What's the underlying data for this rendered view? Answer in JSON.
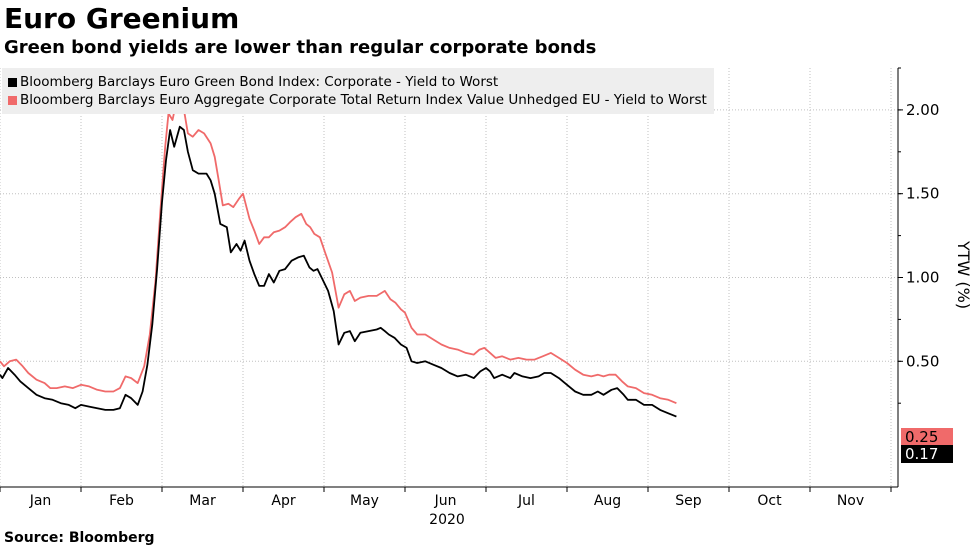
{
  "title": "Euro Greenium",
  "subtitle": "Green bond yields are lower than regular corporate bonds",
  "source": "Source: Bloomberg",
  "colors": {
    "green_series": "#000000",
    "aggregate_series": "#f06a6a",
    "grid": "#bbbbbb",
    "legend_bg": "#eeeeee"
  },
  "chart_data": {
    "type": "line",
    "title": "Euro Greenium",
    "xlabel": "2020",
    "ylabel": "YTW (%)",
    "ylim": [
      -0.25,
      2.25
    ],
    "yticks": [
      0.5,
      1.0,
      1.5,
      2.0
    ],
    "ytick_labels": [
      "0.50",
      "1.00",
      "1.50",
      "2.00"
    ],
    "grid": true,
    "legend_position": "top-left",
    "x_months": [
      "Jan",
      "Feb",
      "Mar",
      "Apr",
      "May",
      "Jun",
      "Jul",
      "Aug",
      "Sep",
      "Oct",
      "Nov"
    ],
    "x_year": "2020",
    "series": [
      {
        "name": "Bloomberg Barclays Euro Green Bond Index: Corporate - Yield to Worst",
        "color": "#000000",
        "last_value_label": "0.17",
        "points": [
          [
            0,
            0.42
          ],
          [
            0.03,
            0.4
          ],
          [
            0.1,
            0.46
          ],
          [
            0.18,
            0.42
          ],
          [
            0.25,
            0.38
          ],
          [
            0.35,
            0.34
          ],
          [
            0.45,
            0.3
          ],
          [
            0.55,
            0.28
          ],
          [
            0.65,
            0.27
          ],
          [
            0.75,
            0.25
          ],
          [
            0.85,
            0.24
          ],
          [
            0.93,
            0.22
          ],
          [
            1.0,
            0.24
          ],
          [
            1.1,
            0.23
          ],
          [
            1.2,
            0.22
          ],
          [
            1.3,
            0.21
          ],
          [
            1.4,
            0.21
          ],
          [
            1.48,
            0.22
          ],
          [
            1.55,
            0.3
          ],
          [
            1.62,
            0.28
          ],
          [
            1.7,
            0.24
          ],
          [
            1.76,
            0.32
          ],
          [
            1.82,
            0.48
          ],
          [
            1.88,
            0.72
          ],
          [
            1.94,
            1.05
          ],
          [
            2.0,
            1.45
          ],
          [
            2.05,
            1.7
          ],
          [
            2.1,
            1.88
          ],
          [
            2.15,
            1.78
          ],
          [
            2.22,
            1.9
          ],
          [
            2.27,
            1.88
          ],
          [
            2.32,
            1.75
          ],
          [
            2.38,
            1.64
          ],
          [
            2.45,
            1.62
          ],
          [
            2.55,
            1.62
          ],
          [
            2.6,
            1.58
          ],
          [
            2.65,
            1.5
          ],
          [
            2.72,
            1.32
          ],
          [
            2.8,
            1.3
          ],
          [
            2.85,
            1.15
          ],
          [
            2.92,
            1.2
          ],
          [
            2.97,
            1.16
          ],
          [
            3.02,
            1.22
          ],
          [
            3.08,
            1.1
          ],
          [
            3.14,
            1.02
          ],
          [
            3.2,
            0.95
          ],
          [
            3.26,
            0.95
          ],
          [
            3.32,
            1.02
          ],
          [
            3.38,
            0.97
          ],
          [
            3.45,
            1.04
          ],
          [
            3.52,
            1.05
          ],
          [
            3.6,
            1.1
          ],
          [
            3.68,
            1.12
          ],
          [
            3.75,
            1.13
          ],
          [
            3.82,
            1.06
          ],
          [
            3.87,
            1.04
          ],
          [
            3.92,
            1.05
          ],
          [
            3.97,
            1.0
          ],
          [
            4.05,
            0.92
          ],
          [
            4.12,
            0.8
          ],
          [
            4.18,
            0.6
          ],
          [
            4.25,
            0.67
          ],
          [
            4.32,
            0.68
          ],
          [
            4.38,
            0.62
          ],
          [
            4.45,
            0.67
          ],
          [
            4.55,
            0.68
          ],
          [
            4.65,
            0.69
          ],
          [
            4.7,
            0.7
          ],
          [
            4.75,
            0.68
          ],
          [
            4.8,
            0.66
          ],
          [
            4.87,
            0.64
          ],
          [
            4.95,
            0.6
          ],
          [
            5.02,
            0.58
          ],
          [
            5.08,
            0.5
          ],
          [
            5.15,
            0.49
          ],
          [
            5.25,
            0.5
          ],
          [
            5.35,
            0.48
          ],
          [
            5.45,
            0.46
          ],
          [
            5.55,
            0.43
          ],
          [
            5.65,
            0.41
          ],
          [
            5.75,
            0.42
          ],
          [
            5.85,
            0.4
          ],
          [
            5.93,
            0.44
          ],
          [
            6.0,
            0.46
          ],
          [
            6.05,
            0.44
          ],
          [
            6.1,
            0.4
          ],
          [
            6.2,
            0.42
          ],
          [
            6.3,
            0.4
          ],
          [
            6.35,
            0.43
          ],
          [
            6.45,
            0.41
          ],
          [
            6.55,
            0.4
          ],
          [
            6.65,
            0.41
          ],
          [
            6.72,
            0.43
          ],
          [
            6.8,
            0.43
          ],
          [
            6.9,
            0.4
          ],
          [
            7.0,
            0.36
          ],
          [
            7.1,
            0.32
          ],
          [
            7.2,
            0.3
          ],
          [
            7.3,
            0.3
          ],
          [
            7.38,
            0.32
          ],
          [
            7.45,
            0.3
          ],
          [
            7.55,
            0.33
          ],
          [
            7.62,
            0.34
          ],
          [
            7.7,
            0.3
          ],
          [
            7.75,
            0.27
          ],
          [
            7.85,
            0.27
          ],
          [
            7.95,
            0.24
          ],
          [
            8.05,
            0.24
          ],
          [
            8.15,
            0.21
          ],
          [
            8.25,
            0.19
          ],
          [
            8.35,
            0.17
          ]
        ]
      },
      {
        "name": "Bloomberg Barclays Euro Aggregate Corporate Total Return Index Value Unhedged EU - Yield to Worst",
        "color": "#f06a6a",
        "last_value_label": "0.25",
        "points": [
          [
            0,
            0.5
          ],
          [
            0.05,
            0.47
          ],
          [
            0.12,
            0.5
          ],
          [
            0.2,
            0.51
          ],
          [
            0.28,
            0.47
          ],
          [
            0.35,
            0.43
          ],
          [
            0.45,
            0.39
          ],
          [
            0.55,
            0.37
          ],
          [
            0.62,
            0.34
          ],
          [
            0.7,
            0.34
          ],
          [
            0.8,
            0.35
          ],
          [
            0.9,
            0.34
          ],
          [
            1.0,
            0.36
          ],
          [
            1.1,
            0.35
          ],
          [
            1.2,
            0.33
          ],
          [
            1.3,
            0.32
          ],
          [
            1.4,
            0.32
          ],
          [
            1.48,
            0.34
          ],
          [
            1.55,
            0.41
          ],
          [
            1.62,
            0.4
          ],
          [
            1.7,
            0.37
          ],
          [
            1.78,
            0.47
          ],
          [
            1.85,
            0.66
          ],
          [
            1.92,
            0.98
          ],
          [
            1.98,
            1.4
          ],
          [
            2.04,
            1.78
          ],
          [
            2.08,
            1.98
          ],
          [
            2.13,
            1.94
          ],
          [
            2.2,
            2.1
          ],
          [
            2.26,
            2.03
          ],
          [
            2.32,
            1.86
          ],
          [
            2.38,
            1.84
          ],
          [
            2.45,
            1.88
          ],
          [
            2.52,
            1.86
          ],
          [
            2.6,
            1.8
          ],
          [
            2.65,
            1.72
          ],
          [
            2.7,
            1.58
          ],
          [
            2.75,
            1.43
          ],
          [
            2.82,
            1.44
          ],
          [
            2.88,
            1.42
          ],
          [
            2.95,
            1.47
          ],
          [
            3.0,
            1.5
          ],
          [
            3.08,
            1.35
          ],
          [
            3.14,
            1.28
          ],
          [
            3.2,
            1.2
          ],
          [
            3.26,
            1.24
          ],
          [
            3.32,
            1.24
          ],
          [
            3.38,
            1.27
          ],
          [
            3.45,
            1.28
          ],
          [
            3.52,
            1.3
          ],
          [
            3.58,
            1.33
          ],
          [
            3.65,
            1.36
          ],
          [
            3.72,
            1.38
          ],
          [
            3.78,
            1.32
          ],
          [
            3.83,
            1.3
          ],
          [
            3.88,
            1.26
          ],
          [
            3.95,
            1.24
          ],
          [
            4.02,
            1.14
          ],
          [
            4.1,
            1.03
          ],
          [
            4.18,
            0.82
          ],
          [
            4.25,
            0.9
          ],
          [
            4.32,
            0.92
          ],
          [
            4.38,
            0.86
          ],
          [
            4.45,
            0.88
          ],
          [
            4.55,
            0.89
          ],
          [
            4.65,
            0.89
          ],
          [
            4.75,
            0.92
          ],
          [
            4.82,
            0.87
          ],
          [
            4.88,
            0.85
          ],
          [
            4.95,
            0.81
          ],
          [
            5.0,
            0.79
          ],
          [
            5.08,
            0.7
          ],
          [
            5.15,
            0.66
          ],
          [
            5.25,
            0.66
          ],
          [
            5.35,
            0.63
          ],
          [
            5.45,
            0.6
          ],
          [
            5.55,
            0.58
          ],
          [
            5.65,
            0.57
          ],
          [
            5.75,
            0.55
          ],
          [
            5.85,
            0.54
          ],
          [
            5.92,
            0.57
          ],
          [
            5.98,
            0.58
          ],
          [
            6.05,
            0.55
          ],
          [
            6.12,
            0.52
          ],
          [
            6.2,
            0.53
          ],
          [
            6.3,
            0.51
          ],
          [
            6.4,
            0.52
          ],
          [
            6.5,
            0.51
          ],
          [
            6.6,
            0.51
          ],
          [
            6.7,
            0.53
          ],
          [
            6.8,
            0.55
          ],
          [
            6.9,
            0.52
          ],
          [
            7.0,
            0.49
          ],
          [
            7.1,
            0.45
          ],
          [
            7.2,
            0.42
          ],
          [
            7.3,
            0.41
          ],
          [
            7.38,
            0.42
          ],
          [
            7.45,
            0.41
          ],
          [
            7.52,
            0.42
          ],
          [
            7.6,
            0.42
          ],
          [
            7.68,
            0.38
          ],
          [
            7.75,
            0.35
          ],
          [
            7.85,
            0.34
          ],
          [
            7.95,
            0.31
          ],
          [
            8.05,
            0.3
          ],
          [
            8.15,
            0.28
          ],
          [
            8.25,
            0.27
          ],
          [
            8.35,
            0.25
          ]
        ]
      }
    ]
  }
}
